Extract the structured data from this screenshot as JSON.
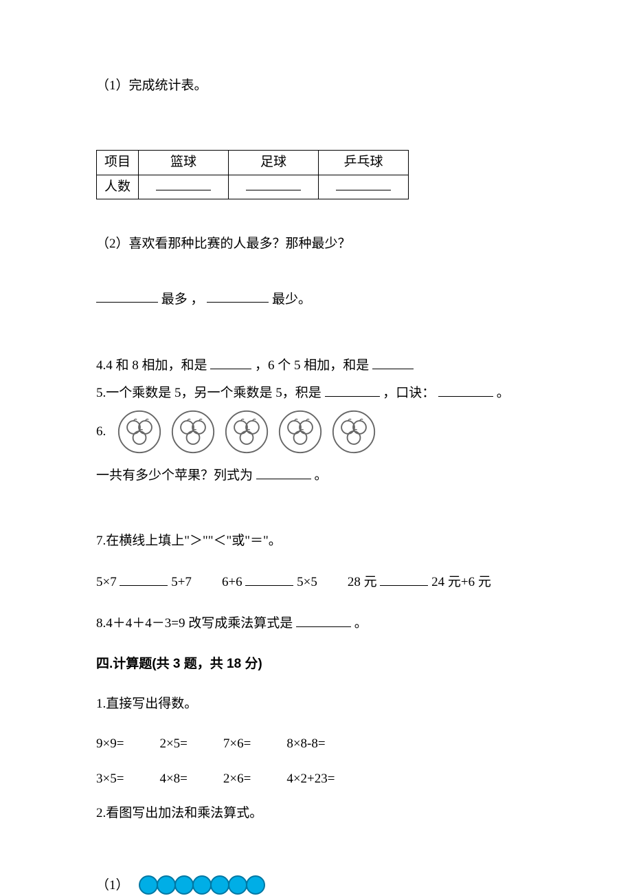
{
  "q1": "（1）完成统计表。",
  "table": {
    "row1": [
      "项目",
      "篮球",
      "足球",
      "乒乓球"
    ],
    "row2_label": "人数"
  },
  "q2": {
    "prompt": "（2）喜欢看那种比赛的人最多？那种最少？",
    "t_most": " 最多 ，",
    "t_least": " 最少。"
  },
  "q4": {
    "a": "4.4 和 8 相加，和是",
    "b": "，6 个 5 相加，和是"
  },
  "q5": {
    "a": "5.一个乘数是 5，另一个乘数是 5，积是",
    "b": " ，口诀：",
    "c": "。"
  },
  "q6": {
    "label": "6.",
    "prompt": "一共有多少个苹果？列式为",
    "suffix": "。"
  },
  "q7": {
    "title": "7.在横线上填上\"＞\"\"＜\"或\"＝\"。",
    "a1": "5×7",
    "a2": "5+7",
    "b1": "6+6",
    "b2": "5×5",
    "c1": "28 元",
    "c2": "24 元+6 元"
  },
  "q8": {
    "a": "8.4＋4＋4－3=9 改写成乘法算式是",
    "suffix": "。"
  },
  "sec4": "四.计算题(共 3 题，共 18 分)",
  "c1": {
    "title": "1.直接写出得数。",
    "r1": [
      "9×9=",
      "2×5=",
      "7×6=",
      "8×8-8="
    ],
    "r2": [
      "3×5=",
      "4×8=",
      "2×6=",
      "4×2+23="
    ]
  },
  "c2": {
    "title": "2.看图写出加法和乘法算式。",
    "sub": "（1）",
    "dot_count": 7,
    "dot_color": "#00aee6",
    "dot_border": "#0077a3"
  }
}
